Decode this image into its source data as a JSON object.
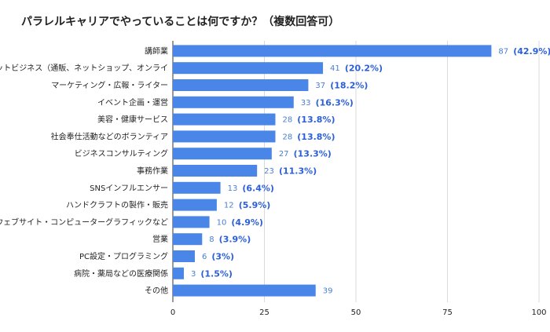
{
  "chart_data": {
    "type": "bar",
    "orientation": "horizontal",
    "title": "パラレルキャリアでやっていることは何ですか？（複数回答可）",
    "categories": [
      "講師業",
      "ネットビジネス（通販、ネットショップ、オンライ",
      "マーケティング・広報・ライター",
      "イベント企画・運営",
      "美容・健康サービス",
      "社会奉仕活動などのボランティア",
      "ビジネスコンサルティング",
      "事務作業",
      "SNSインフルエンサー",
      "ハンドクラフトの製作・販売",
      "ウェブサイト・コンピューターグラフィックなど",
      "営業",
      "PC設定・プログラミング",
      "病院・薬局などの医療関係",
      "その他"
    ],
    "values": [
      87,
      41,
      37,
      33,
      28,
      28,
      27,
      23,
      13,
      12,
      10,
      8,
      6,
      3,
      39
    ],
    "percent_labels": [
      "(42.9%)",
      "(20.2%)",
      "(18.2%)",
      "(16.3%)",
      "(13.8%)",
      "(13.8%)",
      "(13.3%)",
      "(11.3%)",
      "(6.4%)",
      "(5.9%)",
      "(4.9%)",
      "(3.9%)",
      "(3%)",
      "(1.5%)",
      ""
    ],
    "xlim": [
      0,
      100
    ],
    "x_ticks": [
      0,
      25,
      50,
      75,
      100
    ],
    "grid": true,
    "legend": "none",
    "bar_color": "#4a86e8",
    "value_label_color": "#4a7fd4",
    "percent_label_color": "#2b5fd9"
  }
}
